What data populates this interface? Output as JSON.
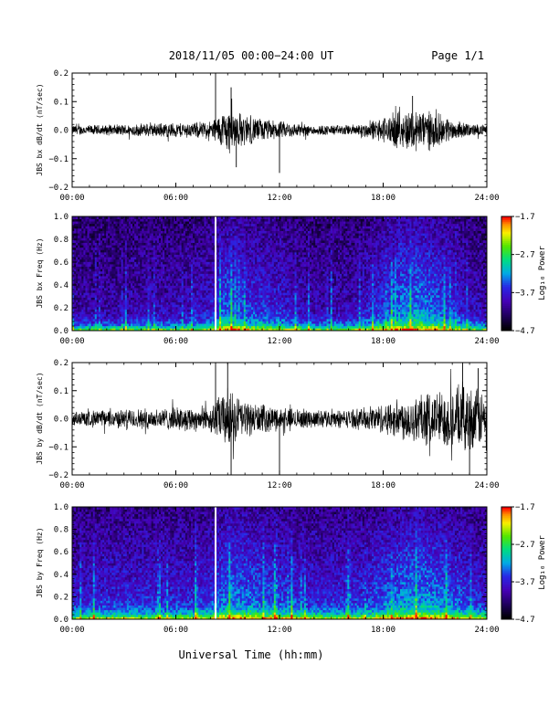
{
  "header": {
    "title": "2018/11/05  00:00−24:00 UT",
    "page": "Page 1/1"
  },
  "xlabel": "Universal Time (hh:mm)",
  "colors": {
    "background": "#ffffff",
    "trace": "#000000",
    "gap_line": "#ffffff"
  },
  "chart_data": [
    {
      "type": "line",
      "ylabel": "JBS bx dB/dt (nT/sec)",
      "ylim": [
        -0.2,
        0.2
      ],
      "yticks": [
        "0.2",
        "0.1",
        "0.0",
        "−0.1",
        "−0.2"
      ],
      "xlim": [
        0,
        24
      ],
      "xticks": [
        "00:00",
        "06:00",
        "12:00",
        "18:00",
        "24:00"
      ],
      "envelope": {
        "x": [
          0,
          2,
          4,
          6,
          7,
          8,
          8.5,
          9,
          10,
          11,
          12,
          14,
          16,
          17,
          18,
          19,
          20,
          21,
          22,
          23,
          24
        ],
        "amplitude": [
          0.02,
          0.02,
          0.025,
          0.03,
          0.03,
          0.035,
          0.06,
          0.09,
          0.06,
          0.045,
          0.035,
          0.02,
          0.02,
          0.03,
          0.05,
          0.075,
          0.085,
          0.07,
          0.04,
          0.025,
          0.02
        ]
      },
      "spikes": [
        {
          "x": 8.3,
          "y": 0.2
        },
        {
          "x": 9.2,
          "y": 0.15
        },
        {
          "x": 9.5,
          "y": -0.13
        },
        {
          "x": 12.0,
          "y": -0.15
        },
        {
          "x": 19.7,
          "y": 0.12
        }
      ]
    },
    {
      "type": "heatmap",
      "ylabel": "JBS bx Freq (Hz)",
      "ylim": [
        0,
        1.0
      ],
      "yticks": [
        "1.0",
        "0.8",
        "0.6",
        "0.4",
        "0.2",
        "0.0"
      ],
      "xlim": [
        0,
        24
      ],
      "xticks": [
        "00:00",
        "06:00",
        "12:00",
        "18:00",
        "24:00"
      ],
      "data_gap_x": 8.3,
      "activity": {
        "x": [
          0,
          2,
          4,
          6,
          7,
          8,
          8.5,
          9,
          10,
          11,
          12,
          14,
          16,
          17,
          18,
          19,
          20,
          21,
          22,
          23,
          24
        ],
        "level": [
          0.3,
          0.3,
          0.35,
          0.35,
          0.4,
          0.45,
          0.6,
          0.7,
          0.6,
          0.55,
          0.5,
          0.35,
          0.35,
          0.45,
          0.6,
          0.75,
          0.8,
          0.7,
          0.55,
          0.4,
          0.35
        ]
      },
      "colorbar": {
        "label": "Log₁₀ Power",
        "ticks": [
          "−1.7",
          "−2.7",
          "−3.7",
          "−4.7"
        ],
        "range": [
          -4.7,
          -1.7
        ]
      }
    },
    {
      "type": "line",
      "ylabel": "JBS by dB/dt (nT/sec)",
      "ylim": [
        -0.2,
        0.2
      ],
      "yticks": [
        "0.2",
        "0.1",
        "0.0",
        "−0.1",
        "−0.2"
      ],
      "xlim": [
        0,
        24
      ],
      "xticks": [
        "00:00",
        "06:00",
        "12:00",
        "18:00",
        "24:00"
      ],
      "envelope": {
        "x": [
          0,
          2,
          4,
          6,
          7,
          8,
          8.5,
          9,
          10,
          11,
          12,
          14,
          16,
          17,
          18,
          19,
          20,
          21,
          22,
          23,
          24
        ],
        "amplitude": [
          0.03,
          0.035,
          0.04,
          0.045,
          0.05,
          0.05,
          0.09,
          0.12,
          0.07,
          0.055,
          0.045,
          0.035,
          0.035,
          0.045,
          0.06,
          0.08,
          0.1,
          0.11,
          0.12,
          0.13,
          0.1
        ]
      },
      "spikes": [
        {
          "x": 8.3,
          "y": 0.2
        },
        {
          "x": 9.2,
          "y": -0.2
        },
        {
          "x": 9.0,
          "y": 0.2
        },
        {
          "x": 12.0,
          "y": -0.2
        },
        {
          "x": 22.6,
          "y": 0.2
        },
        {
          "x": 23.0,
          "y": -0.2
        },
        {
          "x": 23.5,
          "y": 0.18
        }
      ]
    },
    {
      "type": "heatmap",
      "ylabel": "JBS by Freq (Hz)",
      "ylim": [
        0,
        1.0
      ],
      "yticks": [
        "1.0",
        "0.8",
        "0.6",
        "0.4",
        "0.2",
        "0.0"
      ],
      "xlim": [
        0,
        24
      ],
      "xticks": [
        "00:00",
        "06:00",
        "12:00",
        "18:00",
        "24:00"
      ],
      "data_gap_x": 8.3,
      "activity": {
        "x": [
          0,
          2,
          4,
          6,
          7,
          8,
          8.5,
          9,
          10,
          11,
          12,
          14,
          16,
          17,
          18,
          19,
          20,
          21,
          22,
          23,
          24
        ],
        "level": [
          0.45,
          0.5,
          0.5,
          0.5,
          0.5,
          0.55,
          0.65,
          0.75,
          0.7,
          0.65,
          0.6,
          0.5,
          0.5,
          0.55,
          0.65,
          0.75,
          0.8,
          0.75,
          0.65,
          0.55,
          0.5
        ]
      },
      "colorbar": {
        "label": "Log₁₀ Power",
        "ticks": [
          "−1.7",
          "−2.7",
          "−3.7",
          "−4.7"
        ],
        "range": [
          -4.7,
          -1.7
        ]
      }
    }
  ]
}
